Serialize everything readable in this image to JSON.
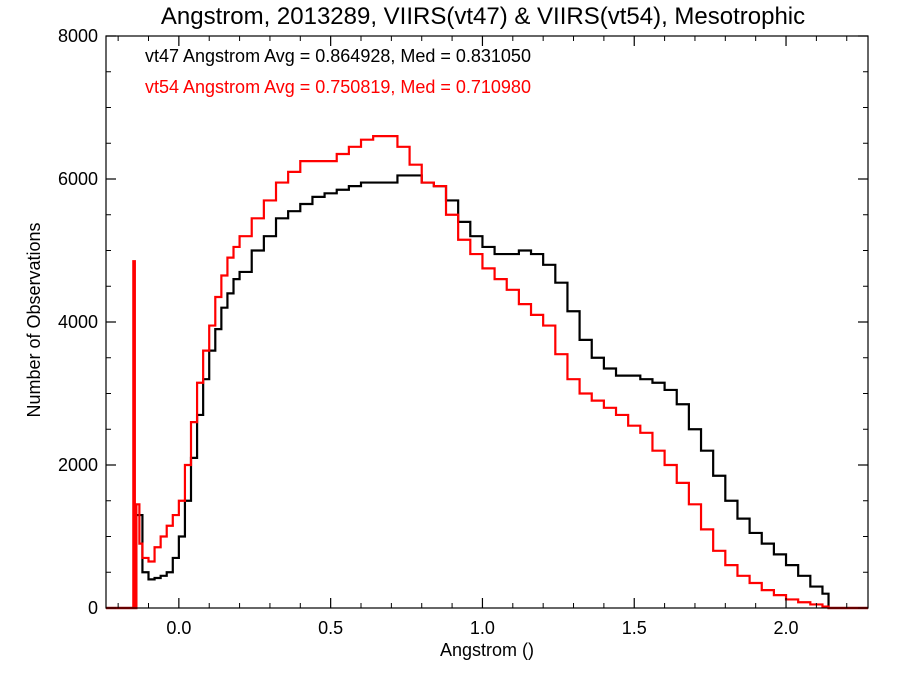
{
  "chart_data": {
    "type": "line",
    "title": "Angstrom, 2013289, VIIRS(vt47) & VIIRS(vt54), Mesotrophic",
    "xlabel": "Angstrom ()",
    "ylabel": "Number of Observations",
    "xlim": [
      -0.24,
      2.27
    ],
    "ylim": [
      0,
      8000
    ],
    "xticks": [
      0.0,
      0.5,
      1.0,
      1.5,
      2.0
    ],
    "xtick_labels": [
      "0.0",
      "0.5",
      "1.0",
      "1.5",
      "2.0"
    ],
    "yticks": [
      0,
      2000,
      4000,
      6000,
      8000
    ],
    "ytick_labels": [
      "0",
      "2000",
      "4000",
      "6000",
      "8000"
    ],
    "grid": false,
    "annotations": [
      {
        "text": "vt47 Angstrom Avg = 0.864928, Med = 0.831050",
        "color": "#000000"
      },
      {
        "text": "vt54 Angstrom Avg = 0.750819, Med = 0.710980",
        "color": "#ff0000"
      }
    ],
    "series": [
      {
        "color": "#000000",
        "style": "step",
        "x": [
          -0.24,
          -0.15,
          -0.14,
          -0.12,
          -0.1,
          -0.08,
          -0.06,
          -0.04,
          -0.02,
          0.0,
          0.02,
          0.04,
          0.06,
          0.08,
          0.1,
          0.12,
          0.14,
          0.16,
          0.18,
          0.2,
          0.24,
          0.28,
          0.32,
          0.36,
          0.4,
          0.44,
          0.48,
          0.52,
          0.56,
          0.6,
          0.64,
          0.68,
          0.72,
          0.76,
          0.8,
          0.84,
          0.88,
          0.92,
          0.96,
          1.0,
          1.04,
          1.08,
          1.12,
          1.16,
          1.2,
          1.24,
          1.28,
          1.32,
          1.36,
          1.4,
          1.44,
          1.48,
          1.52,
          1.56,
          1.6,
          1.64,
          1.68,
          1.72,
          1.76,
          1.8,
          1.84,
          1.88,
          1.92,
          1.96,
          2.0,
          2.04,
          2.08,
          2.12,
          2.14,
          2.27
        ],
        "y": [
          0,
          0,
          1300,
          500,
          400,
          420,
          450,
          500,
          700,
          1000,
          1500,
          2100,
          2700,
          3200,
          3600,
          3900,
          4200,
          4400,
          4600,
          4700,
          5000,
          5200,
          5450,
          5550,
          5650,
          5750,
          5800,
          5850,
          5900,
          5950,
          5950,
          5950,
          6050,
          6050,
          5950,
          5900,
          5700,
          5400,
          5200,
          5050,
          4950,
          4950,
          5000,
          4950,
          4800,
          4550,
          4150,
          3750,
          3500,
          3350,
          3250,
          3250,
          3200,
          3150,
          3050,
          2850,
          2500,
          2200,
          1850,
          1500,
          1250,
          1050,
          900,
          750,
          600,
          450,
          300,
          200,
          0,
          0
        ]
      },
      {
        "color": "#ff0000",
        "style": "step",
        "x": [
          -0.24,
          -0.15,
          -0.145,
          -0.14,
          -0.13,
          -0.12,
          -0.1,
          -0.08,
          -0.06,
          -0.04,
          -0.02,
          0.0,
          0.02,
          0.04,
          0.06,
          0.08,
          0.1,
          0.12,
          0.14,
          0.16,
          0.18,
          0.2,
          0.24,
          0.28,
          0.32,
          0.36,
          0.4,
          0.44,
          0.48,
          0.52,
          0.56,
          0.6,
          0.64,
          0.68,
          0.72,
          0.76,
          0.8,
          0.84,
          0.88,
          0.92,
          0.96,
          1.0,
          1.04,
          1.08,
          1.12,
          1.16,
          1.2,
          1.24,
          1.28,
          1.32,
          1.36,
          1.4,
          1.44,
          1.48,
          1.52,
          1.56,
          1.6,
          1.64,
          1.68,
          1.72,
          1.76,
          1.8,
          1.84,
          1.88,
          1.92,
          1.96,
          2.0,
          2.04,
          2.08,
          2.12,
          2.14,
          2.27
        ],
        "y": [
          0,
          4850,
          0,
          1450,
          900,
          700,
          650,
          850,
          1000,
          1150,
          1300,
          1500,
          2000,
          2600,
          3150,
          3600,
          3950,
          4350,
          4650,
          4900,
          5050,
          5200,
          5450,
          5700,
          5950,
          6100,
          6250,
          6250,
          6250,
          6350,
          6450,
          6550,
          6600,
          6600,
          6450,
          6200,
          5950,
          5900,
          5500,
          5150,
          4950,
          4750,
          4600,
          4450,
          4250,
          4100,
          3950,
          3550,
          3200,
          3000,
          2900,
          2800,
          2700,
          2550,
          2450,
          2200,
          2000,
          1750,
          1450,
          1100,
          800,
          600,
          450,
          350,
          250,
          180,
          120,
          80,
          50,
          20,
          0,
          0
        ]
      }
    ]
  }
}
